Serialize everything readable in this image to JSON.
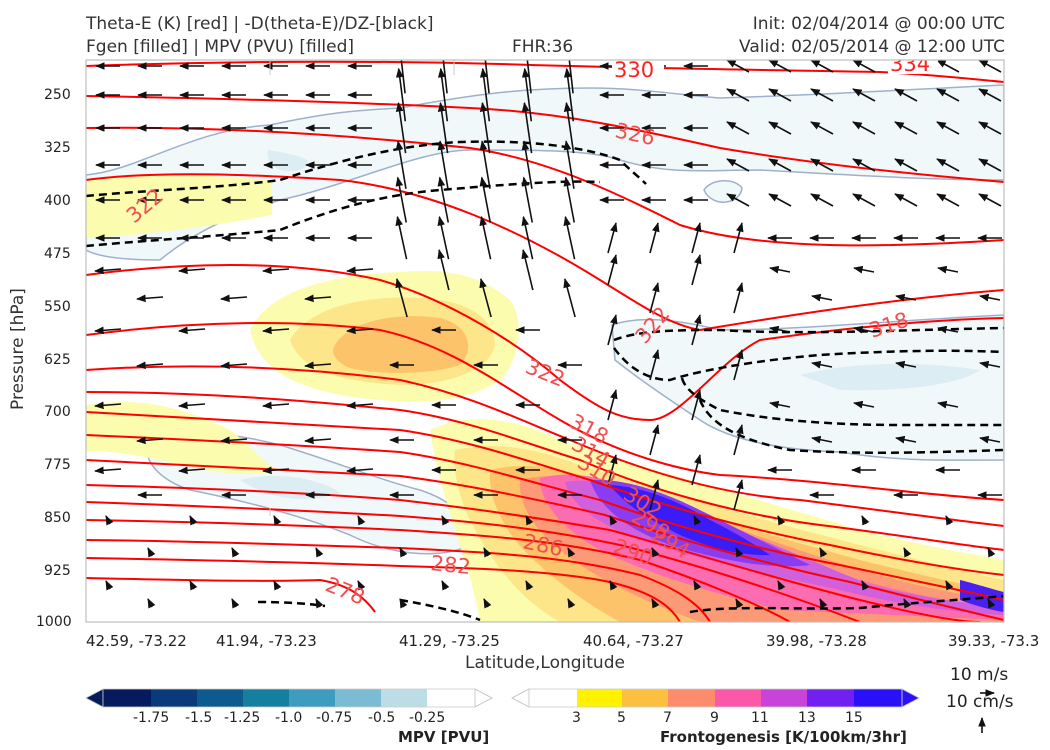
{
  "header": {
    "left_line1": "Theta-E (K) [red] | -D(theta-E)/DZ-[black]",
    "left_line2": "Fgen [filled] | MPV (PVU) [filled]",
    "center_line2": "FHR:36",
    "right_line1": "Init: 02/04/2014 @ 00:00 UTC",
    "right_line2": "Valid: 02/05/2014 @ 12:00 UTC"
  },
  "chart_data": {
    "type": "cross-section",
    "xlabel": "Latitude,Longitude",
    "ylabel": "Pressure [hPa]",
    "y_ticks": [
      "250",
      "325",
      "400",
      "475",
      "550",
      "625",
      "700",
      "775",
      "850",
      "925",
      "1000"
    ],
    "y_values": [
      250,
      325,
      400,
      475,
      550,
      625,
      700,
      775,
      850,
      925,
      1000
    ],
    "ylim": [
      210,
      1000
    ],
    "x_ticks": [
      "42.59, -73.22",
      "41.94, -73.23",
      "41.29, -73.25",
      "40.64, -73.27",
      "39.98, -73.28",
      "39.33, -73.3"
    ],
    "theta_e_labels": [
      "330",
      "334",
      "326",
      "322",
      "322",
      "318",
      "322",
      "318",
      "314",
      "310",
      "302",
      "298",
      "294",
      "290",
      "286",
      "282",
      "278"
    ],
    "contour_colors": {
      "theta_e": "#ff0000",
      "theta_e_label": "#f05050",
      "stability": "#000000",
      "mpv_edge": "#9fb0cc"
    },
    "mpv_colorbar": {
      "label": "MPV [PVU]",
      "ticks": [
        "-1.75",
        "-1.5",
        "-1.25",
        "-1.0",
        "-0.75",
        "-0.5",
        "-0.25"
      ],
      "colors": [
        "#061a5e",
        "#0b3a7a",
        "#0d5a8f",
        "#147f9f",
        "#3e9dbf",
        "#7bbcd4",
        "#bcdde6",
        "#ffffff"
      ]
    },
    "fgen_colorbar": {
      "label": "Frontogenesis [K/100km/3hr]",
      "ticks": [
        "3",
        "5",
        "7",
        "9",
        "11",
        "13",
        "15"
      ],
      "colors": [
        "#ffffff",
        "#fff200",
        "#fcc040",
        "#fc8c6c",
        "#fc58a8",
        "#c844d8",
        "#7220f0",
        "#2a10f8"
      ]
    },
    "wind_key": {
      "horizontal": "10 m/s",
      "vertical": "10 cm/s"
    }
  }
}
